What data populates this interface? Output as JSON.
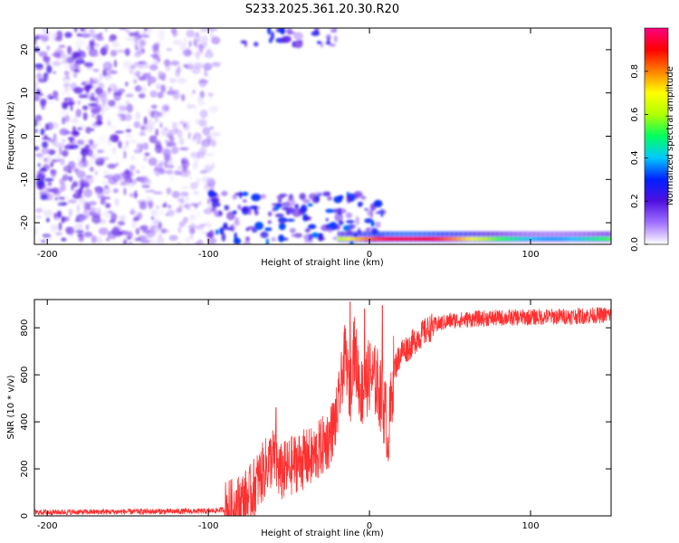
{
  "title": "S233.2025.361.20.30.R20",
  "chart_data": [
    {
      "type": "heatmap",
      "name": "spectrogram",
      "xlabel": "Height of straight line (km)",
      "ylabel": "Frequency (Hz)",
      "xlim": [
        -208,
        150
      ],
      "ylim": [
        -25,
        25
      ],
      "xticks": [
        -200,
        -100,
        0,
        100
      ],
      "xtick_labels": [
        "-200",
        "-100",
        "0",
        "100"
      ],
      "yticks": [
        -20,
        -10,
        0,
        10,
        20
      ],
      "ytick_labels": [
        "-20",
        "-10",
        "0",
        "10",
        "20"
      ],
      "colorbar": {
        "label": "Normalized spectral amplitude",
        "range": [
          0,
          1
        ],
        "ticks": [
          0.0,
          0.2,
          0.4,
          0.6,
          0.8
        ],
        "tick_labels": [
          "0.0",
          "0.2",
          "0.4",
          "0.6",
          "0.8"
        ],
        "colors": [
          "#ffffff",
          "#a070ff",
          "#5010e0",
          "#0020ff",
          "#00c8ff",
          "#00ff60",
          "#b0ff00",
          "#ffff00",
          "#ff8000",
          "#ff0000",
          "#ff0080"
        ]
      },
      "regions": [
        {
          "desc": "diffuse low-amplitude noise",
          "x_range": [
            -208,
            -95
          ],
          "f_range": [
            -25,
            25
          ],
          "amplitude": [
            0.0,
            0.25
          ]
        },
        {
          "desc": "bright band near top edge",
          "x_range": [
            -80,
            -20
          ],
          "f_range": [
            21,
            25
          ],
          "amplitude": [
            0.1,
            0.3
          ]
        },
        {
          "desc": "dispersive arcs lower left",
          "x_range": [
            -100,
            10
          ],
          "f_range": [
            -25,
            -13
          ],
          "amplitude": [
            0.1,
            0.35
          ]
        },
        {
          "desc": "strong low-frequency line",
          "x_range": [
            -20,
            150
          ],
          "f_range": [
            -24.5,
            -22
          ],
          "amplitude": [
            0.3,
            0.95
          ]
        }
      ]
    },
    {
      "type": "line",
      "name": "snr",
      "xlabel": "Height of straight line (km)",
      "ylabel": "SNR (10 * v/v)",
      "xlim": [
        -208,
        150
      ],
      "ylim": [
        0,
        920
      ],
      "xticks": [
        -200,
        -100,
        0,
        100
      ],
      "xtick_labels": [
        "-200",
        "-100",
        "0",
        "100"
      ],
      "yticks": [
        0,
        200,
        400,
        600,
        800
      ],
      "ytick_labels": [
        "0",
        "200",
        "400",
        "600",
        "800"
      ],
      "color": "#ff3030",
      "keypoints": {
        "x": [
          -208,
          -100,
          -85,
          -75,
          -65,
          -60,
          -55,
          -45,
          -35,
          -25,
          -20,
          -15,
          -12,
          -10,
          -5,
          0,
          5,
          10,
          12,
          15,
          20,
          25,
          30,
          40,
          50,
          70,
          100,
          130,
          150
        ],
        "y": [
          15,
          20,
          30,
          80,
          200,
          250,
          180,
          230,
          250,
          330,
          430,
          700,
          500,
          720,
          520,
          600,
          560,
          430,
          350,
          620,
          700,
          720,
          760,
          810,
          830,
          840,
          845,
          850,
          855
        ]
      },
      "spikes": [
        {
          "x": -58,
          "y": 460
        },
        {
          "x": -18,
          "y": 480
        },
        {
          "x": -12,
          "y": 910
        },
        {
          "x": -3,
          "y": 880
        },
        {
          "x": 8,
          "y": 895
        },
        {
          "x": 11,
          "y": 250
        }
      ],
      "noise_amplitude": [
        {
          "x_range": [
            -208,
            -90
          ],
          "amp": 12
        },
        {
          "x_range": [
            -90,
            -10
          ],
          "amp": 130
        },
        {
          "x_range": [
            -10,
            15
          ],
          "amp": 160
        },
        {
          "x_range": [
            15,
            40
          ],
          "amp": 60
        },
        {
          "x_range": [
            40,
            150
          ],
          "amp": 35
        }
      ]
    }
  ]
}
